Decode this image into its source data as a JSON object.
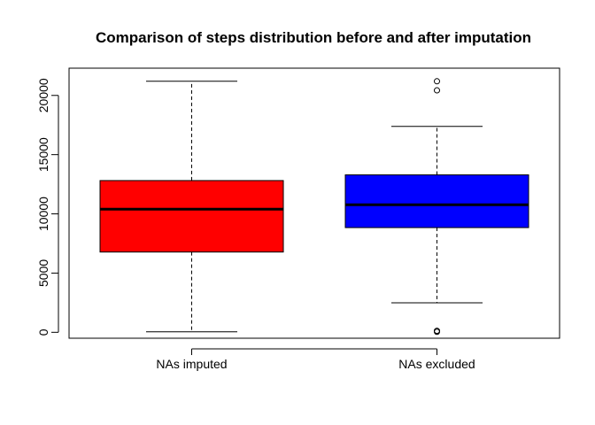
{
  "chart_data": {
    "type": "boxplot",
    "title": "Comparison of steps distribution before and after imputation",
    "xlabel": "",
    "ylabel": "",
    "ylim": [
      -500,
      22300
    ],
    "yticks": [
      0,
      5000,
      10000,
      15000,
      20000
    ],
    "ytick_labels": [
      "0",
      "5000",
      "10000",
      "15000",
      "20000"
    ],
    "categories": [
      "NAs imputed",
      "NAs excluded"
    ],
    "series": [
      {
        "category": "NAs imputed",
        "color": "#ff0000",
        "whisker_low": 41,
        "q1": 6778,
        "median": 10395,
        "q3": 12811,
        "whisker_high": 21194,
        "outliers": []
      },
      {
        "category": "NAs excluded",
        "color": "#0000ff",
        "whisker_low": 2492,
        "q1": 8841,
        "median": 10765,
        "q3": 13294,
        "whisker_high": 17382,
        "outliers": [
          41,
          126,
          20427,
          21194
        ]
      }
    ],
    "grid": false,
    "legend": "none"
  }
}
